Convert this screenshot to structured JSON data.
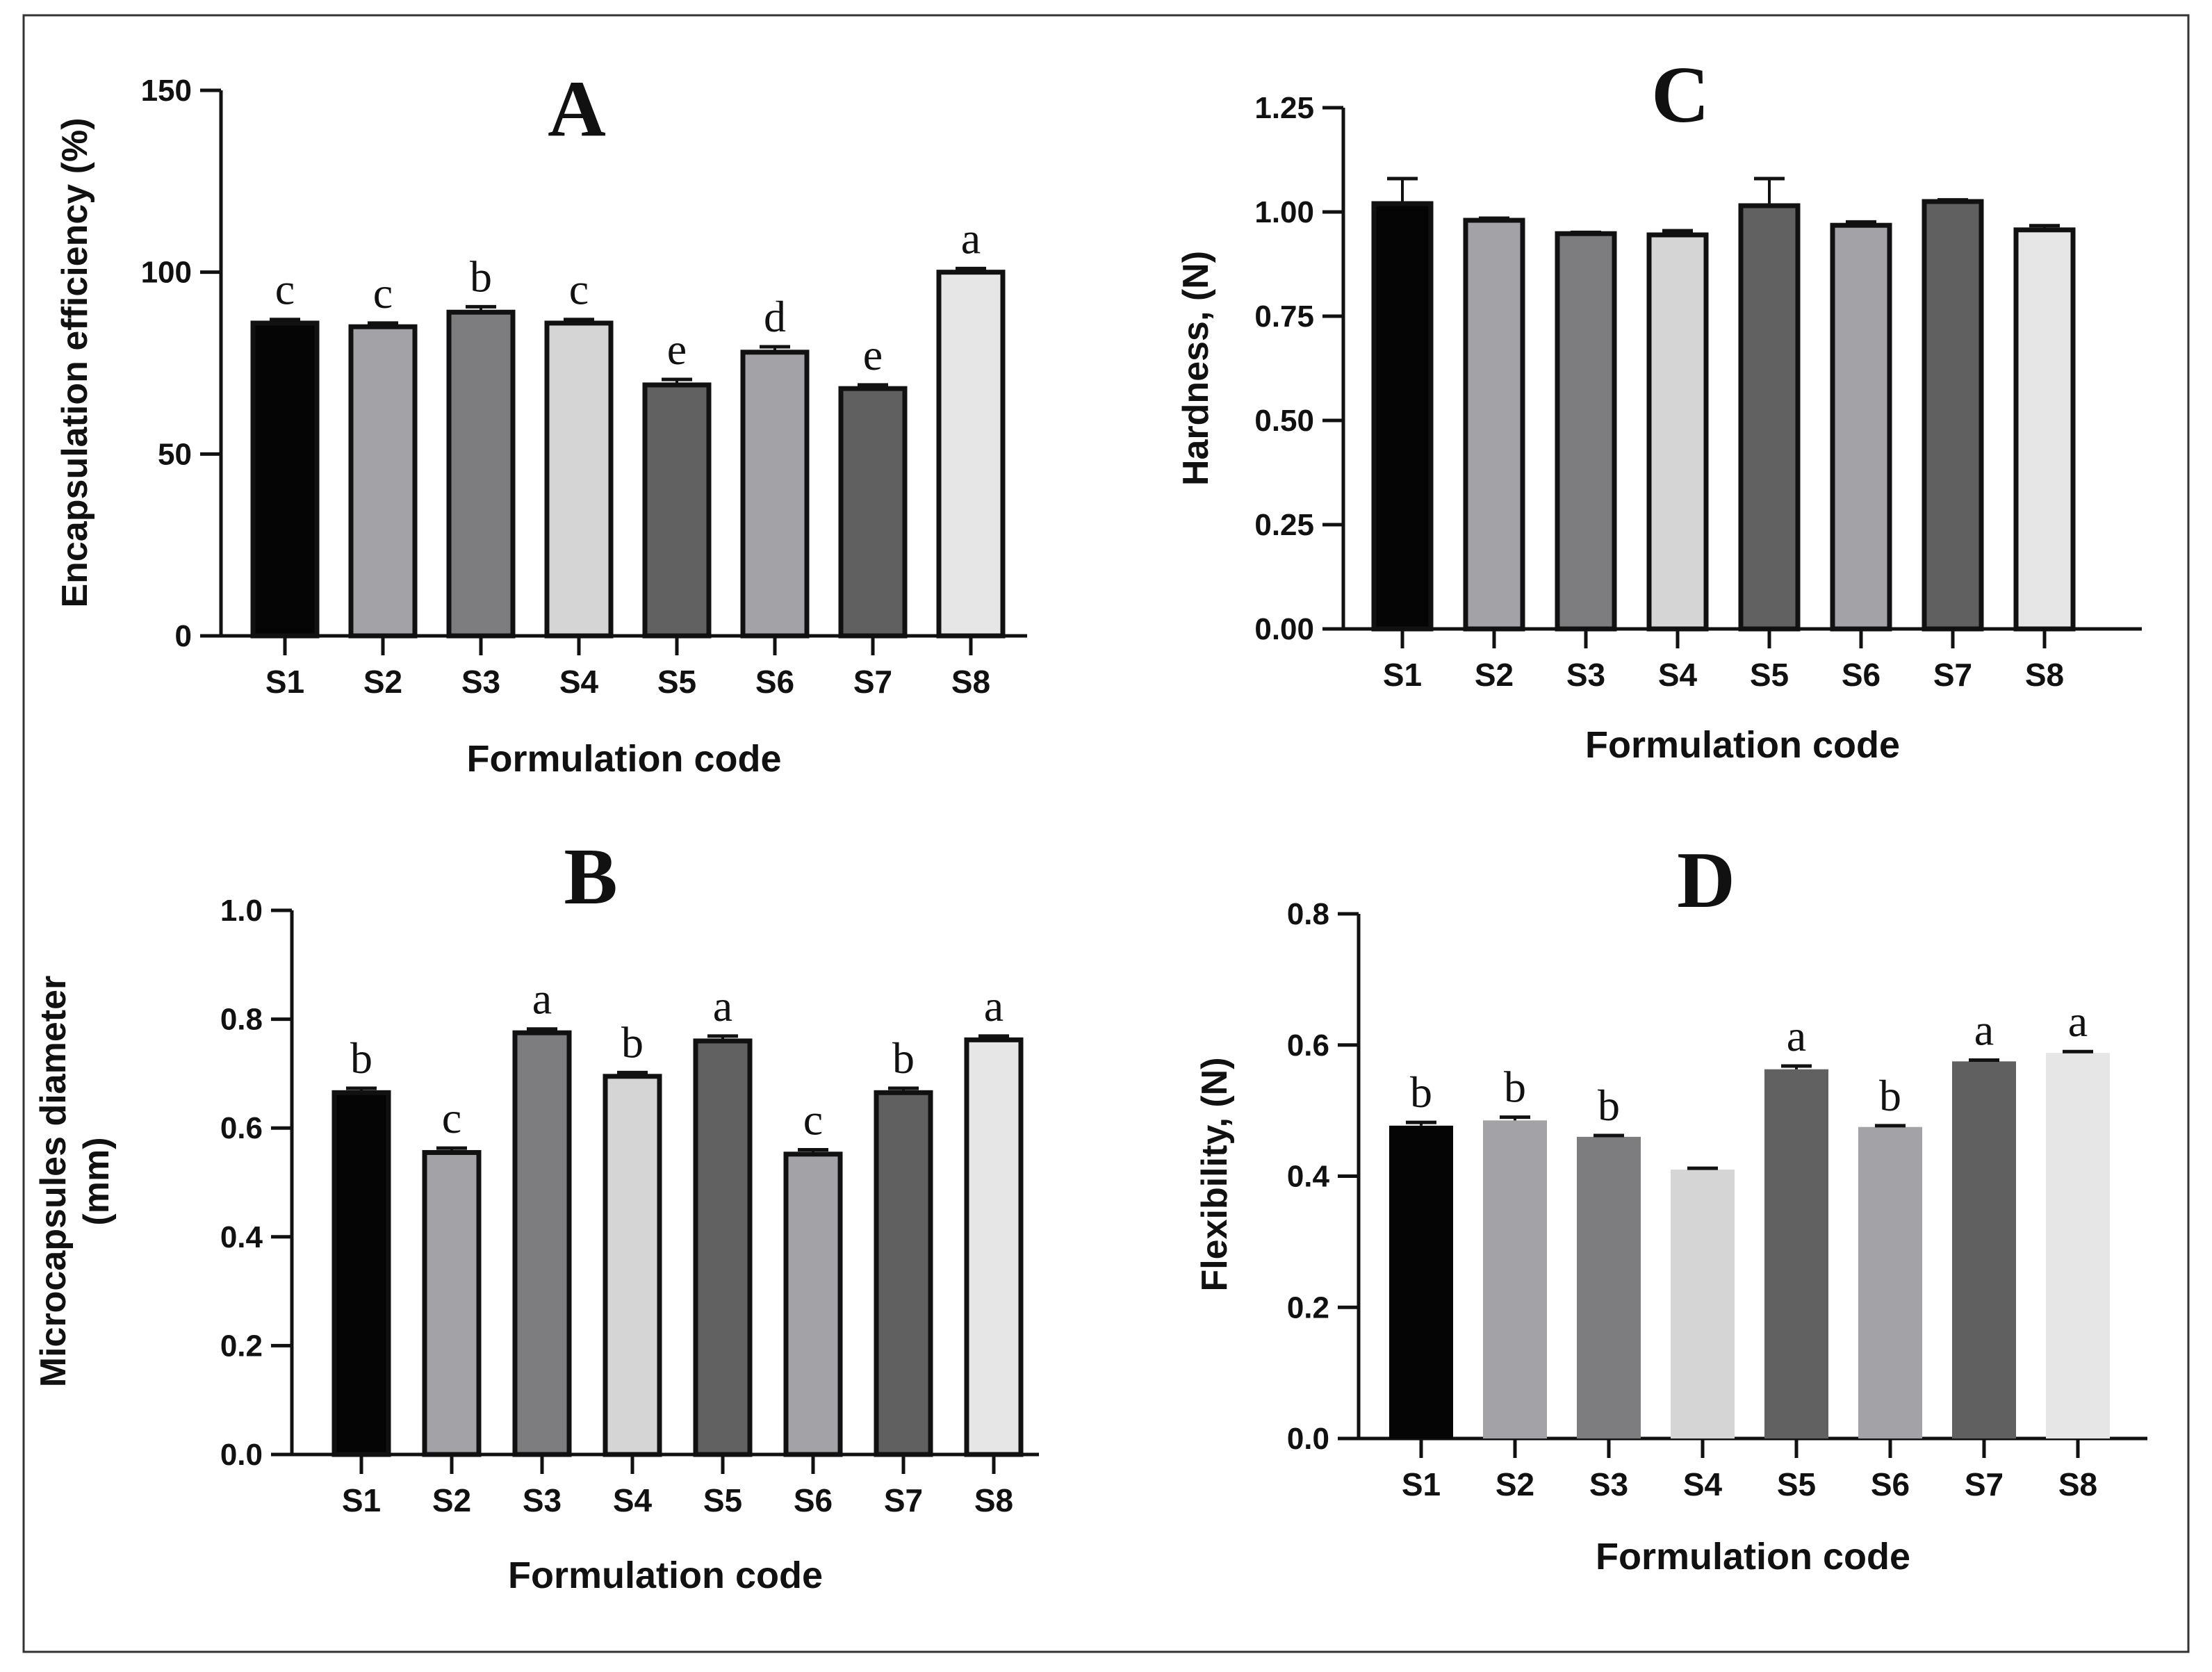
{
  "chart_data": [
    {
      "id": "A",
      "type": "bar",
      "title": "A",
      "xlabel": "Formulation code",
      "ylabel": [
        "Encapsulation efficiency (%)"
      ],
      "categories": [
        "S1",
        "S2",
        "S3",
        "S4",
        "S5",
        "S6",
        "S7",
        "S8"
      ],
      "values": [
        86,
        85,
        89,
        86,
        69,
        78,
        68,
        100
      ],
      "errors": [
        1,
        1,
        1.5,
        1,
        1.5,
        1.5,
        1,
        1
      ],
      "letters": [
        "c",
        "c",
        "b",
        "c",
        "e",
        "d",
        "e",
        "a"
      ],
      "ylim": [
        0,
        150
      ],
      "yticks": [
        0,
        50,
        100,
        150
      ],
      "ytick_labels": [
        "0",
        "50",
        "100",
        "150"
      ],
      "outlined": true,
      "colors": [
        "#050505",
        "#a3a3a7",
        "#7d7d7f",
        "#d5d5d5",
        "#616161",
        "#a3a3a7",
        "#606060",
        "#e6e6e6"
      ]
    },
    {
      "id": "B",
      "type": "bar",
      "title": "B",
      "xlabel": "Formulation code",
      "ylabel": [
        "Microcapsules diameter",
        "(mm)"
      ],
      "categories": [
        "S1",
        "S2",
        "S3",
        "S4",
        "S5",
        "S6",
        "S7",
        "S8"
      ],
      "values": [
        0.665,
        0.555,
        0.775,
        0.695,
        0.76,
        0.552,
        0.665,
        0.762
      ],
      "errors": [
        0.008,
        0.008,
        0.007,
        0.007,
        0.009,
        0.008,
        0.008,
        0.007
      ],
      "letters": [
        "b",
        "c",
        "a",
        "b",
        "a",
        "c",
        "b",
        "a"
      ],
      "ylim": [
        0,
        1.0
      ],
      "yticks": [
        0,
        0.2,
        0.4,
        0.6,
        0.8,
        1.0
      ],
      "ytick_labels": [
        "0.0",
        "0.2",
        "0.4",
        "0.6",
        "0.8",
        "1.0"
      ],
      "outlined": true,
      "colors": [
        "#050505",
        "#a3a3a7",
        "#7d7d7f",
        "#d5d5d5",
        "#616161",
        "#a3a3a7",
        "#606060",
        "#e6e6e6"
      ]
    },
    {
      "id": "C",
      "type": "bar",
      "title": "C",
      "xlabel": "Formulation code",
      "ylabel": [
        "Hardness, (N)"
      ],
      "categories": [
        "S1",
        "S2",
        "S3",
        "S4",
        "S5",
        "S6",
        "S7",
        "S8"
      ],
      "values": [
        1.02,
        0.98,
        0.948,
        0.945,
        1.015,
        0.968,
        1.025,
        0.957
      ],
      "errors": [
        0.06,
        0.005,
        0.003,
        0.01,
        0.065,
        0.008,
        0.004,
        0.01
      ],
      "letters": [],
      "ylim": [
        0,
        1.25
      ],
      "yticks": [
        0,
        0.25,
        0.5,
        0.75,
        1.0,
        1.25
      ],
      "ytick_labels": [
        "0.00",
        "0.25",
        "0.50",
        "0.75",
        "1.00",
        "1.25"
      ],
      "outlined": true,
      "colors": [
        "#050505",
        "#a3a3a7",
        "#7d7d7f",
        "#d5d5d5",
        "#616161",
        "#a3a3a7",
        "#606060",
        "#e6e6e6"
      ]
    },
    {
      "id": "D",
      "type": "bar",
      "title": "D",
      "xlabel": "Formulation code",
      "ylabel": [
        "Flexibility, (N)"
      ],
      "categories": [
        "S1",
        "S2",
        "S3",
        "S4",
        "S5",
        "S6",
        "S7",
        "S8"
      ],
      "values": [
        0.477,
        0.485,
        0.46,
        0.41,
        0.563,
        0.475,
        0.575,
        0.588
      ],
      "errors": [
        0.005,
        0.005,
        0.002,
        0.002,
        0.005,
        0.002,
        0.002,
        0.002
      ],
      "letters": [
        "b",
        "b",
        "b",
        "",
        "a",
        "b",
        "a",
        "a"
      ],
      "ylim": [
        0,
        0.8
      ],
      "yticks": [
        0,
        0.2,
        0.4,
        0.6,
        0.8
      ],
      "ytick_labels": [
        "0.0",
        "0.2",
        "0.4",
        "0.6",
        "0.8"
      ],
      "outlined": false,
      "colors": [
        "#050505",
        "#a3a3a7",
        "#7d7d7f",
        "#d5d5d5",
        "#616161",
        "#a3a3a7",
        "#606060",
        "#e6e6e6"
      ]
    }
  ]
}
